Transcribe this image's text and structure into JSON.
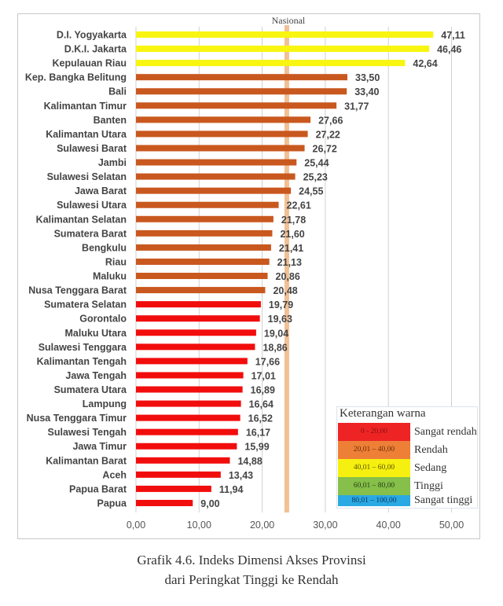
{
  "chart_data": {
    "type": "bar",
    "orientation": "horizontal",
    "title": "",
    "xlabel": "",
    "ylabel": "",
    "xlim": [
      0,
      50
    ],
    "x_ticks": [
      "0,00",
      "10,00",
      "20,00",
      "30,00",
      "40,00",
      "50,00"
    ],
    "x_tick_values": [
      0,
      10,
      20,
      30,
      40,
      50
    ],
    "grid": true,
    "reference_line": {
      "label": "Nasional",
      "value": 23.9,
      "color": "#f0b98a"
    },
    "categories": [
      "D.I. Yogyakarta",
      "D.K.I. Jakarta",
      "Kepulauan Riau",
      "Kep. Bangka Belitung",
      "Bali",
      "Kalimantan Timur",
      "Banten",
      "Kalimantan Utara",
      "Sulawesi Barat",
      "Jambi",
      "Sulawesi Selatan",
      "Jawa Barat",
      "Sulawesi Utara",
      "Kalimantan Selatan",
      "Sumatera Barat",
      "Bengkulu",
      "Riau",
      "Maluku",
      "Nusa Tenggara Barat",
      "Sumatera Selatan",
      "Gorontalo",
      "Maluku Utara",
      "Sulawesi Tenggara",
      "Kalimantan Tengah",
      "Jawa Tengah",
      "Sumatera Utara",
      "Lampung",
      "Nusa Tenggara Timur",
      "Sulawesi Tengah",
      "Jawa Timur",
      "Kalimantan Barat",
      "Aceh",
      "Papua Barat",
      "Papua"
    ],
    "values": [
      47.11,
      46.46,
      42.64,
      33.5,
      33.4,
      31.77,
      27.66,
      27.22,
      26.72,
      25.44,
      25.23,
      24.55,
      22.61,
      21.78,
      21.6,
      21.41,
      21.13,
      20.86,
      20.48,
      19.79,
      19.63,
      19.04,
      18.86,
      17.66,
      17.01,
      16.89,
      16.64,
      16.52,
      16.17,
      15.99,
      14.88,
      13.43,
      11.94,
      9.0
    ],
    "value_labels": [
      "47,11",
      "46,46",
      "42,64",
      "33,50",
      "33,40",
      "31,77",
      "27,66",
      "27,22",
      "26,72",
      "25,44",
      "25,23",
      "24,55",
      "22,61",
      "21,78",
      "21,60",
      "21,41",
      "21,13",
      "20,86",
      "20,48",
      "19,79",
      "19,63",
      "19,04",
      "18,86",
      "17,66",
      "17,01",
      "16,89",
      "16,64",
      "16,52",
      "16,17",
      "15,99",
      "14,88",
      "13,43",
      "11,94",
      "9,00"
    ],
    "legend": {
      "title": "Keterangan warna",
      "placement": "bottom-right",
      "items": [
        {
          "range": "0 - 20,00",
          "label": "Sangat rendah",
          "color": "#ee2424",
          "text_color": "#8a1010",
          "min": 0,
          "max": 20
        },
        {
          "range": "20,01 – 40,00",
          "label": "Rendah",
          "color": "#ee7f36",
          "text_color": "#6a2a08",
          "min": 20.01,
          "max": 40
        },
        {
          "range": "40,01 – 60,00",
          "label": "Sedang",
          "color": "#f6f010",
          "text_color": "#5a5200",
          "min": 40.01,
          "max": 60
        },
        {
          "range": "60,01 – 80,00",
          "label": "Tinggi",
          "color": "#86bf4a",
          "text_color": "#234010",
          "min": 60.01,
          "max": 80
        },
        {
          "range": "80,01 – 100,00",
          "label": "Sangat tinggi",
          "color": "#2aa9e2",
          "text_color": "#0c3560",
          "min": 80.01,
          "max": 100
        }
      ]
    },
    "bar_colors": {
      "sangat_rendah": "#f20d0d",
      "rendah": "#c9581f",
      "sedang": "#f8f510"
    }
  },
  "caption": {
    "line1": "Grafik 4.6. Indeks Dimensi Akses Provinsi",
    "line2": "dari Peringkat Tinggi ke Rendah"
  }
}
